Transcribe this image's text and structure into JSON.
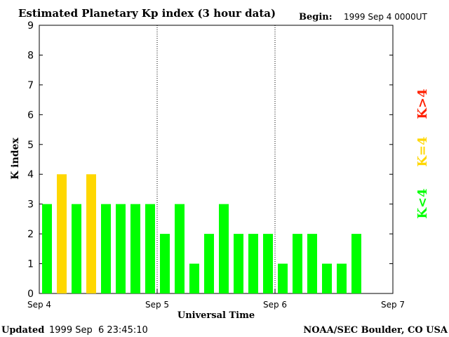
{
  "chart_data": {
    "type": "bar",
    "title": "Estimated Planetary Kp index (3 hour data)",
    "begin_label": "Begin:",
    "begin_value": "1999 Sep 4 0000UT",
    "xlabel": "Universal Time",
    "ylabel": "K index",
    "ylim": [
      0,
      9
    ],
    "yticks": [
      "0",
      "1",
      "2",
      "3",
      "4",
      "5",
      "6",
      "7",
      "8",
      "9"
    ],
    "x_ticks": [
      "Sep 4",
      "Sep 5",
      "Sep 6",
      "Sep 7"
    ],
    "slots": 24,
    "values": [
      3,
      4,
      3,
      4,
      3,
      3,
      3,
      3,
      2,
      3,
      1,
      2,
      3,
      2,
      2,
      2,
      1,
      2,
      2,
      1,
      1,
      2
    ],
    "legend": [
      {
        "label": "K<4",
        "color": "#00ff00"
      },
      {
        "label": "K=4",
        "color": "#ffd700"
      },
      {
        "label": "K>4",
        "color": "#ff2000"
      }
    ]
  },
  "footer": {
    "updated_label": "Updated",
    "updated_value": "1999 Sep  6 23:45:10",
    "source": "NOAA/SEC Boulder, CO USA"
  },
  "colors": {
    "low": "#00ff00",
    "storm_edge": "#ffd700",
    "storm": "#ff2000",
    "axis": "#000000"
  }
}
